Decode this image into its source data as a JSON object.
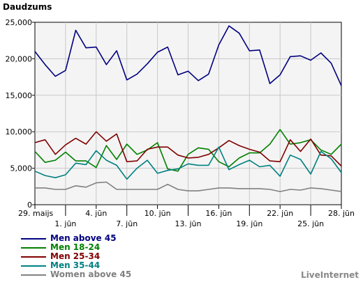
{
  "brand": "LiveInternet",
  "chart_data": {
    "type": "line",
    "title": "",
    "ylabel": "Daudzums",
    "xlabel": "",
    "ylim": [
      0,
      25000
    ],
    "yticks": [
      0,
      5000,
      10000,
      15000,
      20000,
      25000
    ],
    "ytick_labels": [
      "0",
      "5,000",
      "10,000",
      "15,000",
      "20,000",
      "25,000"
    ],
    "xtick_labels": [
      {
        "i": 0,
        "label": "29. maijs",
        "row": 1
      },
      {
        "i": 3,
        "label": "1. jūn",
        "row": 2
      },
      {
        "i": 6,
        "label": "4. jūn",
        "row": 1
      },
      {
        "i": 9,
        "label": "7. jūn",
        "row": 2
      },
      {
        "i": 12,
        "label": "10. jūn",
        "row": 1
      },
      {
        "i": 15,
        "label": "13. jūn",
        "row": 2
      },
      {
        "i": 18,
        "label": "16. jūn",
        "row": 1
      },
      {
        "i": 21,
        "label": "19. jūn",
        "row": 2
      },
      {
        "i": 24,
        "label": "22. jūn",
        "row": 1
      },
      {
        "i": 27,
        "label": "25. jūn",
        "row": 2
      },
      {
        "i": 30,
        "label": "28. jūn",
        "row": 1
      }
    ],
    "legend_position": "bottom-left",
    "grid": true,
    "series": [
      {
        "name": "Men above 45",
        "color": "#000080",
        "values": [
          21000,
          19200,
          17600,
          18400,
          23900,
          21500,
          21600,
          19200,
          21100,
          17100,
          17900,
          19300,
          20900,
          21600,
          17800,
          18300,
          17000,
          17900,
          21900,
          24500,
          23500,
          21100,
          21200,
          16600,
          17800,
          20300,
          20400,
          19800,
          20800,
          19400,
          16300
        ]
      },
      {
        "name": "Men 18-24",
        "color": "#008000",
        "values": [
          7300,
          5800,
          6100,
          7200,
          6000,
          6000,
          5100,
          8100,
          6200,
          8300,
          6900,
          7500,
          8500,
          4900,
          4600,
          6900,
          7800,
          7600,
          5900,
          5200,
          6400,
          7100,
          7100,
          8300,
          10300,
          8300,
          8500,
          8900,
          7500,
          6900,
          8300
        ]
      },
      {
        "name": "Men 25-34",
        "color": "#800000",
        "values": [
          8500,
          8900,
          6900,
          8200,
          9100,
          8300,
          10000,
          8700,
          9700,
          5900,
          6000,
          7600,
          7900,
          7900,
          6800,
          6400,
          6500,
          6900,
          7800,
          8800,
          8100,
          7600,
          7200,
          6000,
          5900,
          8900,
          7300,
          9000,
          6800,
          6700,
          5300
        ]
      },
      {
        "name": "Men 35-44",
        "color": "#008080",
        "values": [
          4600,
          4000,
          3700,
          4100,
          5700,
          5500,
          7400,
          6100,
          5400,
          3500,
          5000,
          6100,
          4300,
          4700,
          4900,
          5600,
          5400,
          5400,
          7900,
          4800,
          5500,
          6100,
          5200,
          5400,
          3900,
          6800,
          6200,
          4200,
          7300,
          6300,
          4400
        ]
      },
      {
        "name": "Women above 45",
        "color": "#808080",
        "values": [
          2300,
          2300,
          2100,
          2100,
          2600,
          2400,
          3000,
          3100,
          2100,
          2100,
          2100,
          2100,
          2100,
          2800,
          2100,
          1900,
          1900,
          2100,
          2300,
          2300,
          2200,
          2200,
          2200,
          2100,
          1800,
          2100,
          2000,
          2300,
          2200,
          2000,
          1800
        ]
      }
    ]
  }
}
